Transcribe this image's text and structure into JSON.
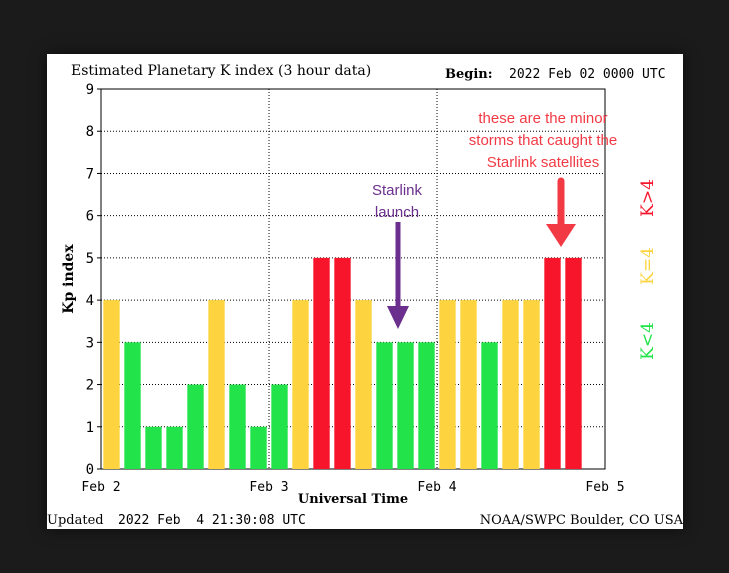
{
  "chart_data": {
    "type": "bar",
    "title": "Estimated Planetary K index (3 hour data)",
    "begin_label": "Begin:",
    "begin_value": "2022 Feb 02 0000 UTC",
    "xlabel": "Universal Time",
    "ylabel": "Kp index",
    "ylim": [
      0,
      9
    ],
    "y_ticks": [
      "0",
      "1",
      "2",
      "3",
      "4",
      "5",
      "6",
      "7",
      "8",
      "9"
    ],
    "x_ticks": [
      "Feb 2",
      "Feb 3",
      "Feb 4",
      "Feb 5"
    ],
    "grid": true,
    "bars_per_day": 8,
    "values": [
      4,
      3,
      1,
      1,
      2,
      4,
      2,
      1,
      2,
      4,
      5,
      5,
      4,
      3,
      3,
      3,
      4,
      4,
      3,
      4,
      4,
      5,
      5
    ],
    "colors": {
      "below_4": "#22e34a",
      "equal_4": "#fdd43f",
      "above_4": "#f7152c"
    },
    "legend": [
      "K<4",
      "K=4",
      "K>4"
    ],
    "updated_label": "Updated",
    "updated_value": "2022 Feb  4 21:30:08 UTC",
    "credit": "NOAA/SWPC Boulder, CO USA"
  },
  "annotations": {
    "starlink_text": [
      "Starlink",
      "launch"
    ],
    "starlink_color": "#6b2f8e",
    "storms_text": [
      "these are the minor",
      "storms that caught the",
      "Starlink satellites"
    ],
    "storms_color": "#f23a45"
  }
}
